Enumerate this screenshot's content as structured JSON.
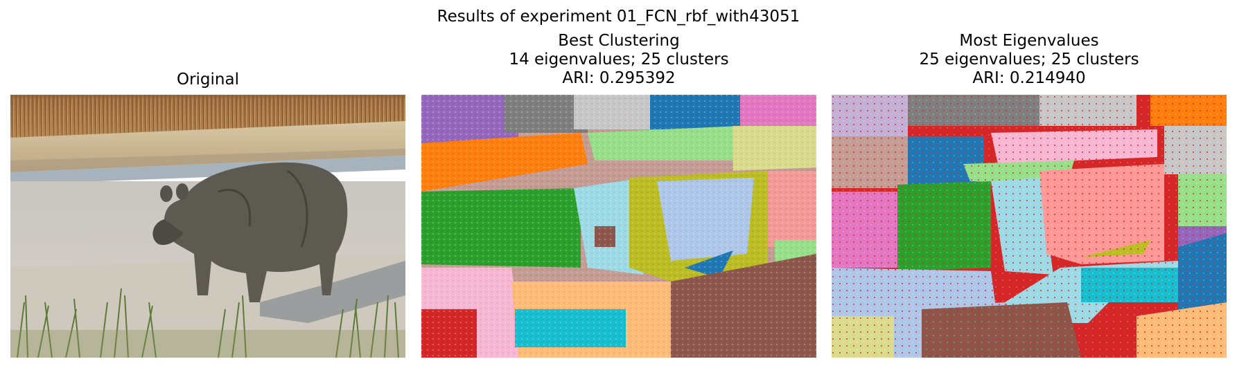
{
  "figure": {
    "suptitle": "Results of experiment 01_FCN_rbf_with43051"
  },
  "panels": [
    {
      "title_lines": [
        "Original"
      ],
      "kind": "photo",
      "subject": "rhinoceros"
    },
    {
      "title_lines": [
        "Best Clustering",
        "14 eigenvalues; 25 clusters",
        "ARI: 0.295392"
      ],
      "kind": "segmentation"
    },
    {
      "title_lines": [
        "Most Eigenvalues",
        "25 eigenvalues; 25 clusters",
        "ARI: 0.214940"
      ],
      "kind": "segmentation"
    }
  ],
  "colors": {
    "tab_blue": "#1f77b4",
    "tab_blue_light": "#aec7e8",
    "tab_orange": "#ff7f0e",
    "tab_orange_light": "#ffbb78",
    "tab_green": "#2ca02c",
    "tab_green_light": "#98df8a",
    "tab_red": "#d62728",
    "tab_red_light": "#ff9896",
    "tab_purple": "#9467bd",
    "tab_purple_light": "#c5b0d5",
    "tab_brown": "#8c564b",
    "tab_brown_light": "#c49c94",
    "tab_pink": "#e377c2",
    "tab_pink_light": "#f7b6d2",
    "tab_gray": "#7f7f7f",
    "tab_gray_light": "#c7c7c7",
    "tab_olive": "#bcbd22",
    "tab_olive_light": "#dbdb8d",
    "tab_cyan": "#17becf",
    "tab_cyan_light": "#9edae5"
  }
}
